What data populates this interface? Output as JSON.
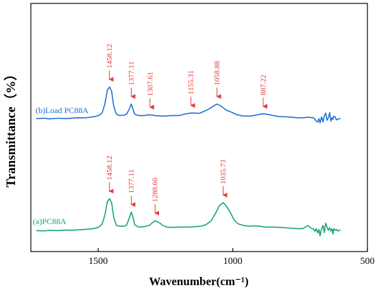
{
  "chart_data": {
    "type": "line",
    "xlabel": "Wavenumber(cm⁻¹)",
    "ylabel": "Transmittance（%）",
    "xlim": [
      1750,
      500
    ],
    "x_reversed": true,
    "x_ticks": [
      1500,
      1000,
      500
    ],
    "y_tick_labels": false,
    "grid": false,
    "series": [
      {
        "name": "(b)Load PC88A",
        "color": "#1f6fd1",
        "label_color": "#1f6fd1",
        "points": [
          [
            1730,
            0.1
          ],
          [
            1700,
            0.5
          ],
          [
            1680,
            -0.3
          ],
          [
            1650,
            0.4
          ],
          [
            1620,
            0.1
          ],
          [
            1600,
            0.5
          ],
          [
            1575,
            1.0
          ],
          [
            1550,
            0.8
          ],
          [
            1530,
            1.5
          ],
          [
            1510,
            2.5
          ],
          [
            1495,
            4.0
          ],
          [
            1485,
            7.0
          ],
          [
            1475,
            17.0
          ],
          [
            1466,
            33.0
          ],
          [
            1458.12,
            37.0
          ],
          [
            1450,
            32.0
          ],
          [
            1442,
            14.0
          ],
          [
            1432,
            5.0
          ],
          [
            1420,
            3.5
          ],
          [
            1405,
            4.0
          ],
          [
            1395,
            5.0
          ],
          [
            1386,
            10.0
          ],
          [
            1377.11,
            17.0
          ],
          [
            1372,
            12.0
          ],
          [
            1364,
            5.0
          ],
          [
            1350,
            3.5
          ],
          [
            1330,
            3.5
          ],
          [
            1307.61,
            4.5
          ],
          [
            1290,
            3.5
          ],
          [
            1270,
            3.0
          ],
          [
            1250,
            3.0
          ],
          [
            1230,
            3.5
          ],
          [
            1200,
            3.5
          ],
          [
            1175,
            5.5
          ],
          [
            1155.31,
            6.5
          ],
          [
            1140,
            6.5
          ],
          [
            1125,
            6.0
          ],
          [
            1110,
            8.0
          ],
          [
            1090,
            11.0
          ],
          [
            1070,
            15.0
          ],
          [
            1058.88,
            17.0
          ],
          [
            1045,
            15.0
          ],
          [
            1025,
            10.0
          ],
          [
            1005,
            7.5
          ],
          [
            985,
            4.5
          ],
          [
            960,
            3.0
          ],
          [
            935,
            3.0
          ],
          [
            915,
            4.0
          ],
          [
            900,
            5.0
          ],
          [
            887.22,
            5.5
          ],
          [
            870,
            5.0
          ],
          [
            850,
            3.5
          ],
          [
            830,
            2.5
          ],
          [
            800,
            2.0
          ],
          [
            780,
            1.5
          ],
          [
            760,
            1.0
          ],
          [
            740,
            1.0
          ],
          [
            720,
            1.5
          ],
          [
            700,
            1.0
          ],
          [
            690,
            -3.0
          ],
          [
            684,
            -4.0
          ],
          [
            680,
            0.0
          ],
          [
            676,
            -5.0
          ],
          [
            670,
            2.0
          ],
          [
            665,
            -4.0
          ],
          [
            660,
            3.0
          ],
          [
            655,
            6.5
          ],
          [
            650,
            -2.0
          ],
          [
            645,
            1.0
          ],
          [
            640,
            7.0
          ],
          [
            636,
            -3.0
          ],
          [
            632,
            1.0
          ],
          [
            628,
            -1.0
          ],
          [
            625,
            3.0
          ],
          [
            620,
            2.0
          ],
          [
            615,
            -1.5
          ],
          [
            605,
            0.0
          ],
          [
            600,
            0.0
          ]
        ],
        "peaks": [
          {
            "x": 1458.12,
            "label": "1458.12"
          },
          {
            "x": 1377.11,
            "label": "1377.11"
          },
          {
            "x": 1307.61,
            "label": "1307.61"
          },
          {
            "x": 1155.31,
            "label": "1155.31"
          },
          {
            "x": 1058.88,
            "label": "1058.88"
          },
          {
            "x": 887.22,
            "label": "887.22"
          }
        ]
      },
      {
        "name": "(a)PC88A",
        "color": "#16a37a",
        "label_color": "#16a37a",
        "points": [
          [
            1730,
            0.5
          ],
          [
            1700,
            0.2
          ],
          [
            1680,
            0.8
          ],
          [
            1650,
            0.5
          ],
          [
            1620,
            1.2
          ],
          [
            1600,
            1.0
          ],
          [
            1575,
            1.5
          ],
          [
            1550,
            2.0
          ],
          [
            1530,
            2.5
          ],
          [
            1510,
            3.5
          ],
          [
            1495,
            5.5
          ],
          [
            1485,
            9.0
          ],
          [
            1475,
            20.0
          ],
          [
            1466,
            37.0
          ],
          [
            1458.12,
            41.0
          ],
          [
            1450,
            36.0
          ],
          [
            1442,
            17.0
          ],
          [
            1432,
            7.0
          ],
          [
            1420,
            6.0
          ],
          [
            1405,
            6.0
          ],
          [
            1395,
            7.0
          ],
          [
            1386,
            15.0
          ],
          [
            1377.11,
            24.0
          ],
          [
            1372,
            19.0
          ],
          [
            1364,
            8.0
          ],
          [
            1350,
            5.0
          ],
          [
            1330,
            5.5
          ],
          [
            1310,
            7.0
          ],
          [
            1300,
            10.0
          ],
          [
            1288.6,
            13.0
          ],
          [
            1275,
            11.0
          ],
          [
            1260,
            7.0
          ],
          [
            1245,
            5.0
          ],
          [
            1225,
            4.5
          ],
          [
            1200,
            5.0
          ],
          [
            1180,
            5.0
          ],
          [
            1160,
            5.0
          ],
          [
            1140,
            5.5
          ],
          [
            1120,
            6.0
          ],
          [
            1100,
            8.0
          ],
          [
            1080,
            13.0
          ],
          [
            1065,
            22.0
          ],
          [
            1050,
            32.0
          ],
          [
            1035.73,
            36.0
          ],
          [
            1025,
            32.0
          ],
          [
            1010,
            24.0
          ],
          [
            995,
            14.0
          ],
          [
            980,
            9.0
          ],
          [
            960,
            7.0
          ],
          [
            940,
            6.0
          ],
          [
            920,
            6.5
          ],
          [
            900,
            6.0
          ],
          [
            880,
            5.0
          ],
          [
            850,
            5.0
          ],
          [
            820,
            4.5
          ],
          [
            800,
            4.0
          ],
          [
            780,
            3.5
          ],
          [
            760,
            3.0
          ],
          [
            740,
            3.0
          ],
          [
            720,
            7.0
          ],
          [
            712,
            4.0
          ],
          [
            700,
            2.5
          ],
          [
            694,
            -0.5
          ],
          [
            690,
            3.0
          ],
          [
            684,
            -2.5
          ],
          [
            680,
            2.0
          ],
          [
            676,
            -6.0
          ],
          [
            670,
            3.0
          ],
          [
            665,
            7.0
          ],
          [
            660,
            -2.0
          ],
          [
            655,
            10.0
          ],
          [
            650,
            5.0
          ],
          [
            645,
            1.0
          ],
          [
            640,
            4.0
          ],
          [
            636,
            0.0
          ],
          [
            632,
            3.0
          ],
          [
            628,
            -4.0
          ],
          [
            625,
            3.0
          ],
          [
            620,
            1.0
          ],
          [
            615,
            2.0
          ],
          [
            610,
            0.0
          ],
          [
            605,
            1.0
          ],
          [
            600,
            1.0
          ]
        ],
        "peaks": [
          {
            "x": 1458.12,
            "label": "1458.12"
          },
          {
            "x": 1377.11,
            "label": "1377.11"
          },
          {
            "x": 1288.6,
            "label": "1288.60"
          },
          {
            "x": 1035.73,
            "label": "1035.73"
          }
        ]
      }
    ]
  },
  "annotation_color": "#e53935"
}
